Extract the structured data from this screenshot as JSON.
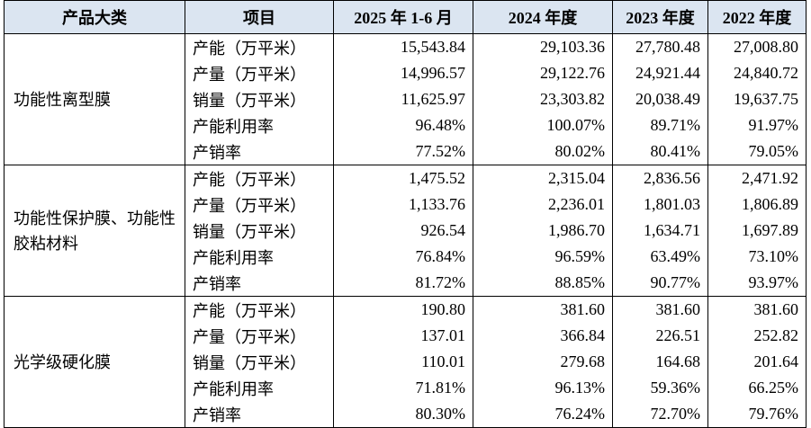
{
  "table": {
    "header": [
      "产品大类",
      "项目",
      "2025 年 1-6 月",
      "2024 年度",
      "2023 年度",
      "2022 年度"
    ],
    "groups": [
      {
        "name": "功能性离型膜",
        "rows": [
          [
            "产能（万平米）",
            "15,543.84",
            "29,103.36",
            "27,780.48",
            "27,008.80"
          ],
          [
            "产量（万平米）",
            "14,996.57",
            "29,122.76",
            "24,921.44",
            "24,840.72"
          ],
          [
            "销量（万平米）",
            "11,625.97",
            "23,303.82",
            "20,038.49",
            "19,637.75"
          ],
          [
            "产能利用率",
            "96.48%",
            "100.07%",
            "89.71%",
            "91.97%"
          ],
          [
            "产销率",
            "77.52%",
            "80.02%",
            "80.41%",
            "79.05%"
          ]
        ]
      },
      {
        "name": "功能性保护膜、功能性胶粘材料",
        "rows": [
          [
            "产能（万平米）",
            "1,475.52",
            "2,315.04",
            "2,836.56",
            "2,471.92"
          ],
          [
            "产量（万平米）",
            "1,133.76",
            "2,236.01",
            "1,801.03",
            "1,806.89"
          ],
          [
            "销量（万平米）",
            "926.54",
            "1,986.70",
            "1,634.71",
            "1,697.89"
          ],
          [
            "产能利用率",
            "76.84%",
            "96.59%",
            "63.49%",
            "73.10%"
          ],
          [
            "产销率",
            "81.72%",
            "88.85%",
            "90.77%",
            "93.97%"
          ]
        ]
      },
      {
        "name": "光学级硬化膜",
        "rows": [
          [
            "产能（万平米）",
            "190.80",
            "381.60",
            "381.60",
            "381.60"
          ],
          [
            "产量（万平米）",
            "137.01",
            "366.84",
            "226.51",
            "252.82"
          ],
          [
            "销量（万平米）",
            "110.01",
            "279.68",
            "164.68",
            "201.64"
          ],
          [
            "产能利用率",
            "71.81%",
            "96.13%",
            "59.36%",
            "66.25%"
          ],
          [
            "产销率",
            "80.30%",
            "76.24%",
            "72.70%",
            "79.76%"
          ]
        ]
      }
    ]
  }
}
